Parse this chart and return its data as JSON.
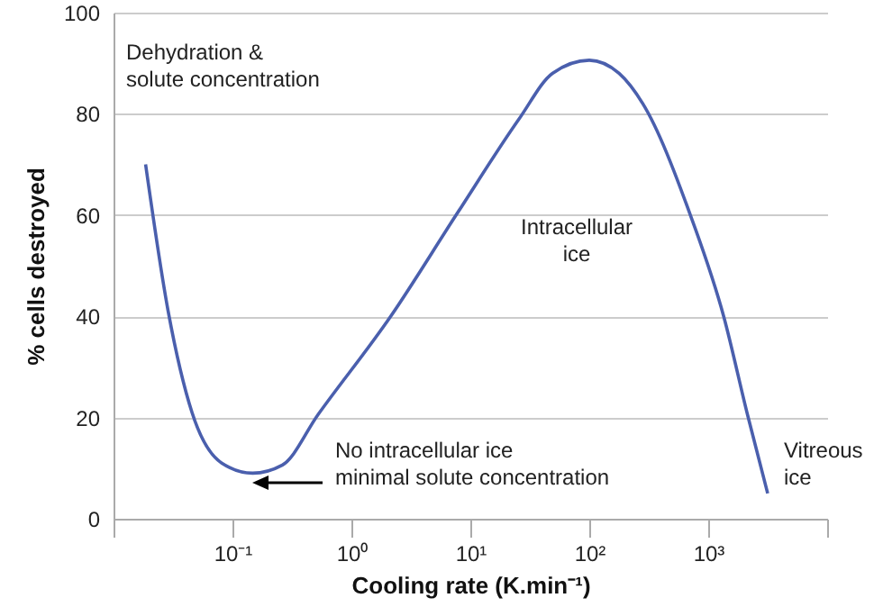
{
  "chart_data": {
    "type": "line",
    "xlabel": "Cooling rate (K.min⁻¹)",
    "ylabel": "% cells destroyed",
    "x": [
      0.0186,
      0.0288,
      0.0457,
      0.0813,
      0.148,
      0.263,
      0.525,
      2.14,
      7.59,
      25.7,
      49,
      100,
      178,
      282,
      708,
      1349,
      2138,
      3162
    ],
    "series": [
      {
        "color": "#4a5fad",
        "values": [
          70,
          41,
          21,
          11,
          9,
          10.6,
          20.6,
          40,
          60,
          79,
          88,
          90.6,
          88,
          82,
          60,
          40,
          20.6,
          5
        ]
      }
    ],
    "log": "x",
    "xlim": [
      0.01,
      10000
    ],
    "ylim": [
      0,
      100
    ],
    "xticks": [
      {
        "value": 0.01,
        "label": null
      },
      {
        "value": 0.1,
        "label": "10⁻¹"
      },
      {
        "value": 1,
        "label": "10⁰"
      },
      {
        "value": 10,
        "label": "10¹"
      },
      {
        "value": 100,
        "label": "10²"
      },
      {
        "value": 1000,
        "label": "10³"
      },
      {
        "value": 10000,
        "label": null
      }
    ],
    "yticks": [
      0,
      20,
      40,
      60,
      80,
      100
    ],
    "grid": "y",
    "marker": "none",
    "line_style": "solid",
    "annotations": [
      "Dehydration &\nsolute concentration",
      "Intracellular\nice",
      "No intracellular ice\nminimal solute concentration",
      "Vitreous\nice"
    ]
  }
}
